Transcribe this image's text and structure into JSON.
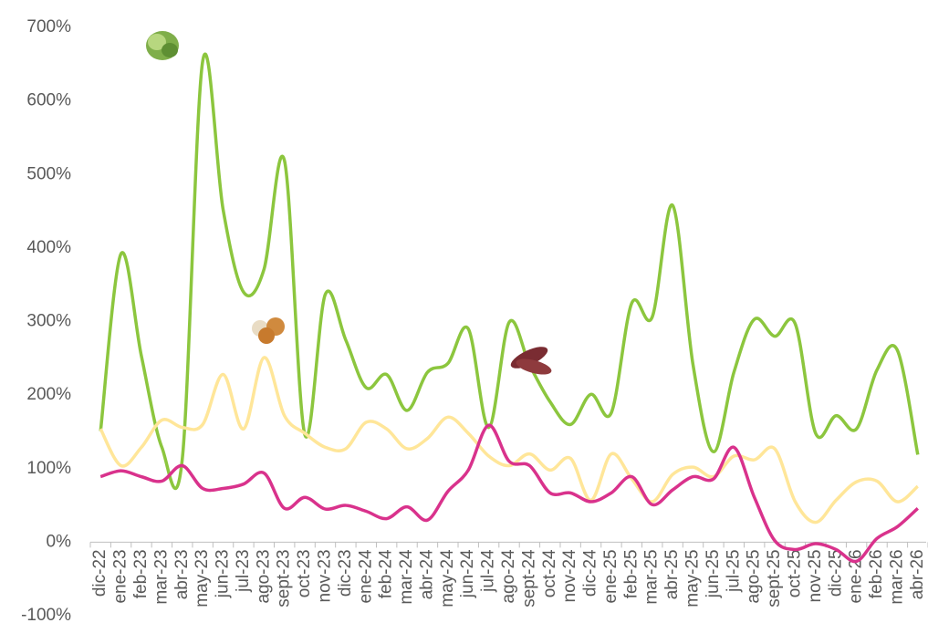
{
  "chart_data": {
    "type": "line",
    "categories": [
      "dic-22",
      "ene-23",
      "feb-23",
      "mar-23",
      "abr-23",
      "may-23",
      "jun-23",
      "jul-23",
      "ago-23",
      "sept-23",
      "oct-23",
      "nov-23",
      "dic-23",
      "ene-24",
      "feb-24",
      "mar-24",
      "abr-24",
      "may-24",
      "jun-24",
      "jul-24",
      "ago-24",
      "sept-24",
      "oct-24",
      "nov-24",
      "dic-24",
      "ene-25",
      "feb-25",
      "mar-25",
      "abr-25",
      "may-25",
      "jun-25",
      "jul-25",
      "ago-25",
      "sept-25",
      "oct-25",
      "nov-25",
      "dic-25",
      "ene-26",
      "feb-26",
      "mar-26",
      "abr-26"
    ],
    "series": [
      {
        "color": "#8cc63e",
        "values": [
          151,
          392,
          253,
          129,
          113,
          654,
          452,
          340,
          371,
          519,
          146,
          337,
          275,
          210,
          228,
          179,
          231,
          243,
          290,
          156,
          299,
          241,
          191,
          160,
          201,
          176,
          325,
          306,
          458,
          241,
          123,
          231,
          303,
          280,
          297,
          148,
          172,
          154,
          234,
          261,
          119
        ]
      },
      {
        "color": "#ffe699",
        "values": [
          154,
          104,
          129,
          166,
          156,
          160,
          228,
          154,
          251,
          172,
          148,
          129,
          127,
          163,
          154,
          127,
          141,
          170,
          148,
          117,
          104,
          120,
          98,
          114,
          57,
          120,
          86,
          55,
          92,
          102,
          89,
          117,
          112,
          127,
          55,
          27,
          57,
          82,
          83,
          55,
          76
        ]
      },
      {
        "color": "#d9328c",
        "values": [
          89,
          97,
          89,
          83,
          104,
          73,
          73,
          79,
          94,
          46,
          61,
          45,
          50,
          42,
          32,
          48,
          30,
          69,
          98,
          159,
          110,
          104,
          67,
          67,
          55,
          67,
          89,
          51,
          71,
          89,
          86,
          129,
          61,
          2,
          -10,
          -2,
          -10,
          -26,
          5,
          21,
          46
        ]
      }
    ],
    "ylim": [
      -100,
      700
    ],
    "yticks": [
      {
        "value": -100,
        "label": "-100%"
      },
      {
        "value": 0,
        "label": "0%"
      },
      {
        "value": 100,
        "label": "100%"
      },
      {
        "value": 200,
        "label": "200%"
      },
      {
        "value": 300,
        "label": "300%"
      },
      {
        "value": 400,
        "label": "400%"
      },
      {
        "value": 500,
        "label": "500%"
      },
      {
        "value": 600,
        "label": "600%"
      },
      {
        "value": 700,
        "label": "700%"
      }
    ],
    "grid": false
  }
}
